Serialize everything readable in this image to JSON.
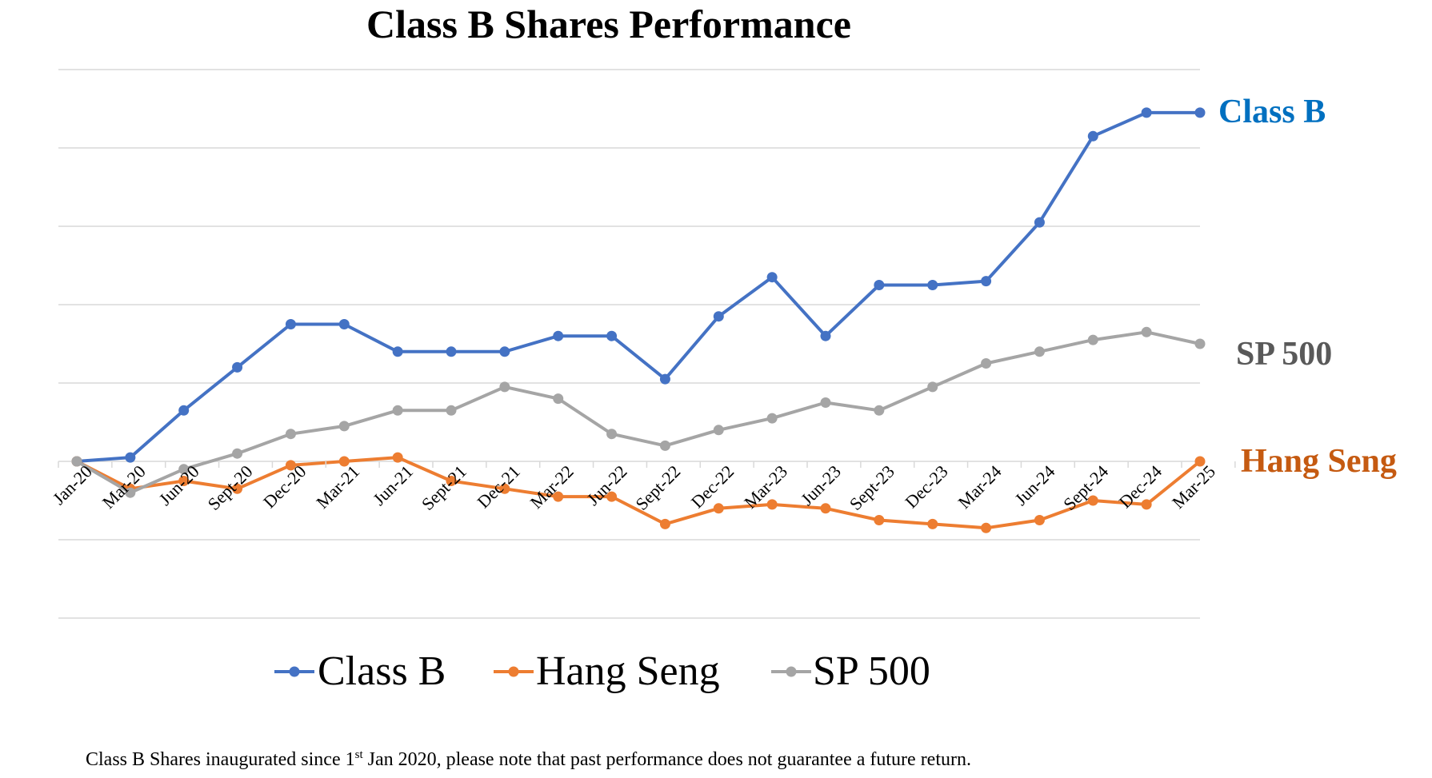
{
  "chart_data": {
    "type": "line",
    "title": "Class B Shares Performance",
    "categories": [
      "Jan-20",
      "Mar-20",
      "Jun-20",
      "Sept-20",
      "Dec-20",
      "Mar-21",
      "Jun-21",
      "Sept-21",
      "Dec-21",
      "Mar-22",
      "Jun-22",
      "Sept-22",
      "Dec-22",
      "Mar-23",
      "Jun-23",
      "Sept-23",
      "Dec-23",
      "Mar-24",
      "Jun-24",
      "Sept-24",
      "Dec-24",
      "Mar-25"
    ],
    "xlabel": "",
    "ylabel": "",
    "y_tick_labels_shown": false,
    "grid": true,
    "legend_position": "bottom",
    "series": [
      {
        "name": "Class B",
        "color": "#4472C4",
        "values": [
          0,
          1,
          13,
          24,
          35,
          35,
          28,
          28,
          28,
          32,
          32,
          21,
          37,
          47,
          32,
          45,
          45,
          46,
          61,
          83,
          89,
          89
        ]
      },
      {
        "name": "Hang Seng",
        "color": "#ED7D31",
        "values": [
          0,
          -7,
          -5,
          -7,
          -1,
          0,
          1,
          -5,
          -7,
          -9,
          -9,
          -16,
          -12,
          -11,
          -12,
          -15,
          -16,
          -17,
          -15,
          -10,
          -11,
          0
        ]
      },
      {
        "name": "SP 500",
        "color": "#A5A5A5",
        "values": [
          0,
          -8,
          -2,
          2,
          7,
          9,
          13,
          13,
          19,
          16,
          7,
          4,
          8,
          11,
          15,
          13,
          19,
          25,
          28,
          31,
          33,
          30
        ]
      }
    ],
    "end_labels": [
      {
        "text": "Class B",
        "color": "#0070C0"
      },
      {
        "text": "SP 500",
        "color": "#595959"
      },
      {
        "text": "Hang Seng",
        "color": "#C55A11"
      }
    ]
  },
  "footnote": {
    "before": "Class B Shares inaugurated since 1",
    "sup": "st",
    "after": " Jan 2020, please note that past performance does not guarantee a future return."
  }
}
